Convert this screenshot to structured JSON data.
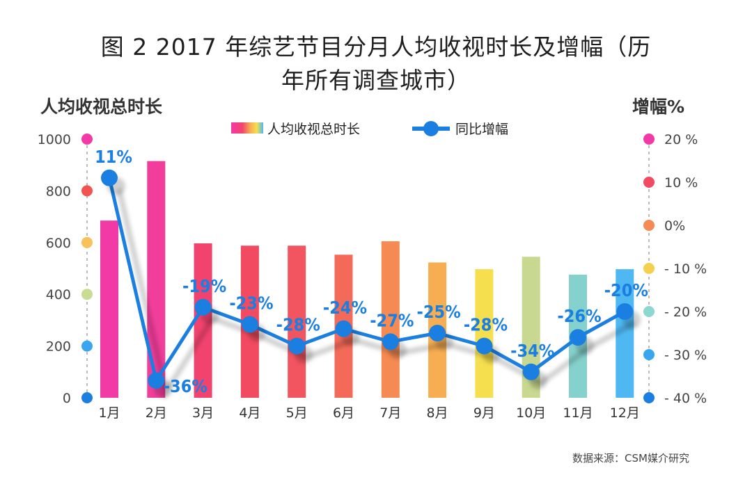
{
  "title_line1": "图 2  2017 年综艺节目分月人均收视时长及增幅（历",
  "title_line2": "年所有调查城市）",
  "y_left_title": "人均收视总时长",
  "y_right_title": "增幅%",
  "source": "数据来源：CSM媒介研究",
  "chart_data": {
    "type": "bar",
    "categories": [
      "1月",
      "2月",
      "3月",
      "4月",
      "5月",
      "6月",
      "7月",
      "8月",
      "9月",
      "10月",
      "11月",
      "12月"
    ],
    "series": [
      {
        "name": "人均收视总时长",
        "type": "bar",
        "axis": "left",
        "values": [
          685,
          915,
          597,
          588,
          588,
          553,
          605,
          523,
          497,
          545,
          476,
          497
        ],
        "colors": [
          "#f23aa6",
          "#f13e9a",
          "#f2436e",
          "#f24a60",
          "#f25460",
          "#f46a58",
          "#f58a52",
          "#f7ad52",
          "#f5df4e",
          "#c8d890",
          "#85d1cd",
          "#4fb8f2"
        ]
      },
      {
        "name": "同比增幅",
        "type": "line",
        "axis": "right",
        "values": [
          11,
          -36,
          -19,
          -23,
          -28,
          -24,
          -27,
          -25,
          -28,
          -34,
          -26,
          -20
        ],
        "labels": [
          "11%",
          "-36%",
          "-19%",
          "-23%",
          "-28%",
          "-24%",
          "-27%",
          "-25%",
          "-28%",
          "-34%",
          "-26%",
          "-20%"
        ],
        "color": "#1a7fe0"
      }
    ],
    "y_left": {
      "ylim": [
        0,
        1000
      ],
      "ticks": [
        "0",
        "200",
        "400",
        "600",
        "800",
        "1000"
      ]
    },
    "y_right": {
      "ylim": [
        -40,
        20
      ],
      "ticks": [
        "- 40 %",
        "- 30 %",
        "- 20 %",
        "- 10 %",
        "0%",
        "10 %",
        "20 %"
      ]
    },
    "left_dot_colors": [
      "#1a7fe0",
      "#3aa6ef",
      "#c8dc94",
      "#f7c25a",
      "#f4544f",
      "#f23aa6"
    ],
    "right_dot_colors": [
      "#1a7fe0",
      "#3aa6ef",
      "#8ed6d0",
      "#f5d04e",
      "#f58a52",
      "#f24a60",
      "#f23aa6"
    ],
    "legend": {
      "bar_label": "人均收视总时长",
      "line_label": "同比增幅",
      "placement": "top-center"
    },
    "grid": false
  }
}
